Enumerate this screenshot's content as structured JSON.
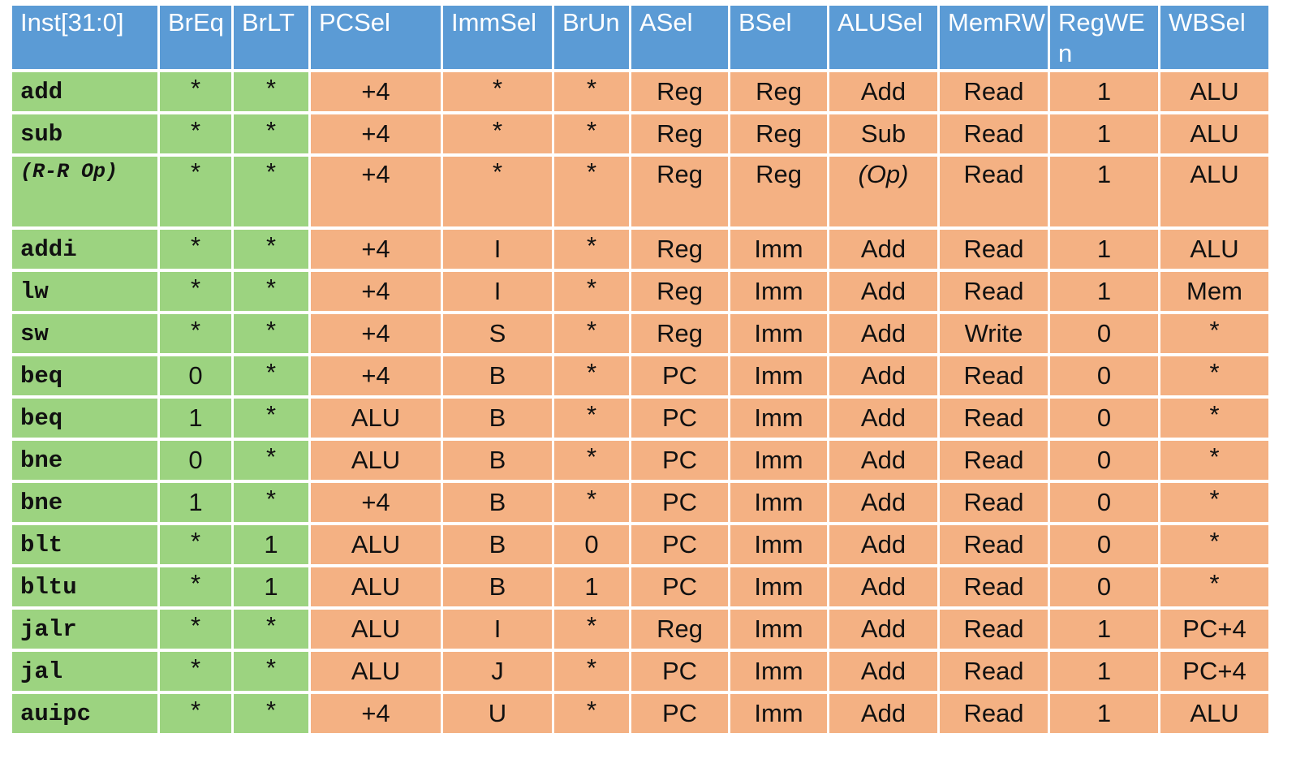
{
  "headers": [
    "Inst[31:0]",
    "BrEq",
    "BrLT",
    "PCSel",
    "ImmSel",
    "BrUn",
    "ASel",
    "BSel",
    "ALUSel",
    "MemRW",
    "RegWEn",
    "WBSel"
  ],
  "rows": [
    [
      "add",
      "*",
      "*",
      "+4",
      "*",
      "*",
      "Reg",
      "Reg",
      "Add",
      "Read",
      "1",
      "ALU"
    ],
    [
      "sub",
      "*",
      "*",
      "+4",
      "*",
      "*",
      "Reg",
      "Reg",
      "Sub",
      "Read",
      "1",
      "ALU"
    ],
    [
      "(R-R Op)",
      "*",
      "*",
      "+4",
      "*",
      "*",
      "Reg",
      "Reg",
      "(Op)",
      "Read",
      "1",
      "ALU"
    ],
    [
      "addi",
      "*",
      "*",
      "+4",
      "I",
      "*",
      "Reg",
      "Imm",
      "Add",
      "Read",
      "1",
      "ALU"
    ],
    [
      "lw",
      "*",
      "*",
      "+4",
      "I",
      "*",
      "Reg",
      "Imm",
      "Add",
      "Read",
      "1",
      "Mem"
    ],
    [
      "sw",
      "*",
      "*",
      "+4",
      "S",
      "*",
      "Reg",
      "Imm",
      "Add",
      "Write",
      "0",
      "*"
    ],
    [
      "beq",
      "0",
      "*",
      "+4",
      "B",
      "*",
      "PC",
      "Imm",
      "Add",
      "Read",
      "0",
      "*"
    ],
    [
      "beq",
      "1",
      "*",
      "ALU",
      "B",
      "*",
      "PC",
      "Imm",
      "Add",
      "Read",
      "0",
      "*"
    ],
    [
      "bne",
      "0",
      "*",
      "ALU",
      "B",
      "*",
      "PC",
      "Imm",
      "Add",
      "Read",
      "0",
      "*"
    ],
    [
      "bne",
      "1",
      "*",
      "+4",
      "B",
      "*",
      "PC",
      "Imm",
      "Add",
      "Read",
      "0",
      "*"
    ],
    [
      "blt",
      "*",
      "1",
      "ALU",
      "B",
      "0",
      "PC",
      "Imm",
      "Add",
      "Read",
      "0",
      "*"
    ],
    [
      "bltu",
      "*",
      "1",
      "ALU",
      "B",
      "1",
      "PC",
      "Imm",
      "Add",
      "Read",
      "0",
      "*"
    ],
    [
      "jalr",
      "*",
      "*",
      "ALU",
      "I",
      "*",
      "Reg",
      "Imm",
      "Add",
      "Read",
      "1",
      "PC+4"
    ],
    [
      "jal",
      "*",
      "*",
      "ALU",
      "J",
      "*",
      "PC",
      "Imm",
      "Add",
      "Read",
      "1",
      "PC+4"
    ],
    [
      "auipc",
      "*",
      "*",
      "+4",
      "U",
      "*",
      "PC",
      "Imm",
      "Add",
      "Read",
      "1",
      "ALU"
    ]
  ],
  "colors": {
    "header": "#5b9bd5",
    "inputs": "#9cd380",
    "outputs": "#f4b183"
  }
}
